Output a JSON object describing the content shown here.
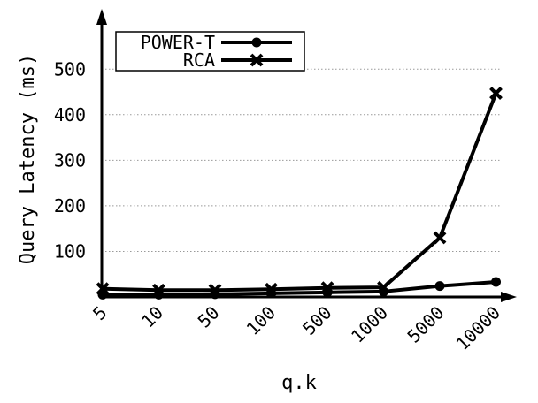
{
  "chart_data": {
    "type": "line",
    "title": "",
    "xlabel": "q.k",
    "ylabel": "Query Latency (ms)",
    "categories": [
      "5",
      "10",
      "50",
      "100",
      "500",
      "1000",
      "5000",
      "10000"
    ],
    "yticks": [
      "100",
      "200",
      "300",
      "400",
      "500"
    ],
    "ylim": [
      0,
      580
    ],
    "grid": "horizontal-dotted",
    "legend_position": "top-left",
    "series": [
      {
        "name": "POWER-T",
        "marker": "circle",
        "values": [
          5,
          5,
          6,
          8,
          10,
          12,
          24,
          33
        ]
      },
      {
        "name": "RCA",
        "marker": "x",
        "values": [
          18,
          15,
          15,
          17,
          20,
          21,
          130,
          447
        ]
      }
    ],
    "colors": {
      "line": "#000000",
      "grid": "#999999",
      "background": "#ffffff"
    }
  }
}
